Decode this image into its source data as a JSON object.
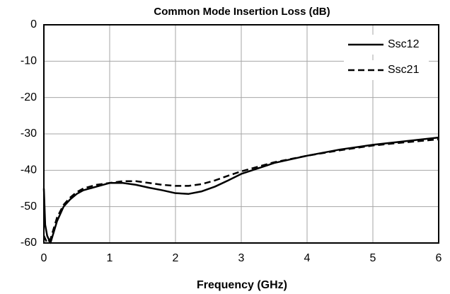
{
  "chart_data": {
    "type": "line",
    "title": "Common Mode Insertion Loss (dB)",
    "x_label": "Frequency  (GHz)",
    "xlim": [
      0,
      6
    ],
    "xticks": [
      0,
      1,
      2,
      3,
      4,
      5,
      6
    ],
    "ylim": [
      -60,
      0
    ],
    "yticks": [
      -60,
      -50,
      -40,
      -30,
      -20,
      -10,
      0
    ],
    "grid": true,
    "legend": "top-right",
    "series": [
      {
        "name": "Ssc12",
        "color": "#000000",
        "style": "solid",
        "x": [
          0,
          0.02,
          0.05,
          0.1,
          0.15,
          0.2,
          0.3,
          0.4,
          0.5,
          0.6,
          0.8,
          1.0,
          1.2,
          1.4,
          1.6,
          1.8,
          2.0,
          2.2,
          2.4,
          2.6,
          2.8,
          3.0,
          3.5,
          4.0,
          4.5,
          5.0,
          5.5,
          6.0
        ],
        "values": [
          -45,
          -55,
          -58,
          -60,
          -57,
          -54,
          -50,
          -48,
          -46.5,
          -45.5,
          -44.5,
          -43.5,
          -43.5,
          -44,
          -44.8,
          -45.5,
          -46.3,
          -46.5,
          -45.8,
          -44.5,
          -42.8,
          -41,
          -38,
          -36,
          -34.3,
          -33,
          -32,
          -31
        ]
      },
      {
        "name": "Ssc21",
        "color": "#000000",
        "style": "dashed",
        "x": [
          0,
          0.05,
          0.1,
          0.15,
          0.2,
          0.3,
          0.4,
          0.5,
          0.6,
          0.8,
          1.0,
          1.2,
          1.4,
          1.6,
          1.8,
          2.0,
          2.2,
          2.4,
          2.6,
          2.8,
          3.0,
          3.5,
          4.0,
          4.5,
          5.0,
          5.5,
          6.0
        ],
        "values": [
          -58,
          -60,
          -59,
          -56,
          -53,
          -49.5,
          -47.5,
          -46,
          -45,
          -44,
          -43.5,
          -43,
          -43,
          -43.5,
          -44,
          -44.3,
          -44.3,
          -43.8,
          -42.8,
          -41.5,
          -40.3,
          -37.8,
          -36,
          -34.5,
          -33.2,
          -32.3,
          -31.5
        ]
      }
    ]
  }
}
